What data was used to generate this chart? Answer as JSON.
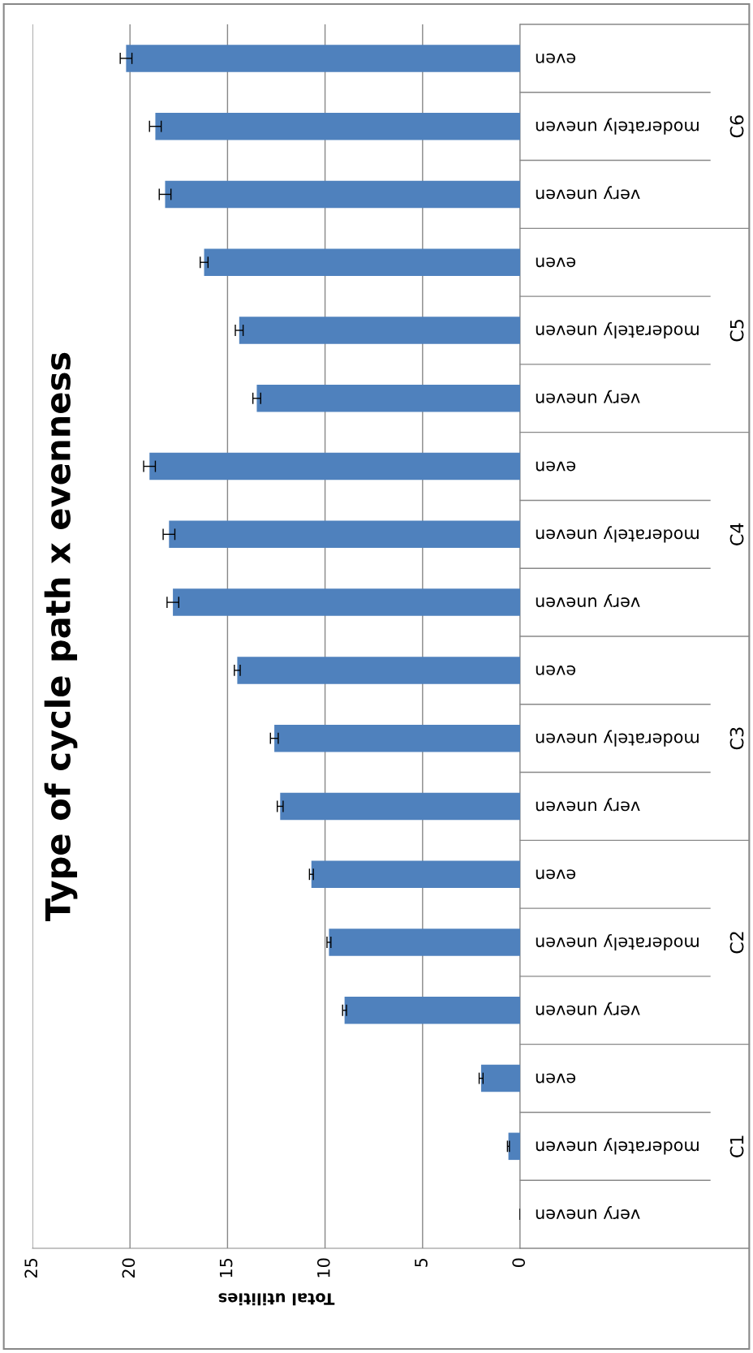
{
  "chart_data": {
    "type": "bar",
    "orientation": "horizontal",
    "title": "Type of cycle path x evenness",
    "xlabel": "Total utilities",
    "categories": [
      "even",
      "moderately uneven",
      "very uneven",
      "even",
      "moderately uneven",
      "very uneven",
      "even",
      "moderately uneven",
      "very uneven",
      "even",
      "moderately uneven",
      "very uneven",
      "even",
      "moderately uneven",
      "very uneven",
      "even",
      "moderately uneven",
      "very uneven"
    ],
    "values": [
      20.2,
      18.7,
      18.2,
      16.2,
      14.4,
      13.5,
      19.0,
      18.0,
      17.8,
      14.5,
      12.6,
      12.3,
      10.7,
      9.8,
      9.0,
      2.0,
      0.6,
      0
    ],
    "errors": [
      0.3,
      0.3,
      0.3,
      0.2,
      0.2,
      0.2,
      0.3,
      0.3,
      0.3,
      0.15,
      0.2,
      0.15,
      0.1,
      0.1,
      0.1,
      0.1,
      0.05,
      null
    ],
    "color": "#4f81bd",
    "xlim": [
      25,
      0
    ],
    "xticks": [
      0,
      5,
      10,
      15,
      20,
      25
    ],
    "grid": "x",
    "annotations": [
      "C6",
      "C5",
      "C4",
      "C3",
      "C2",
      "C1"
    ]
  }
}
